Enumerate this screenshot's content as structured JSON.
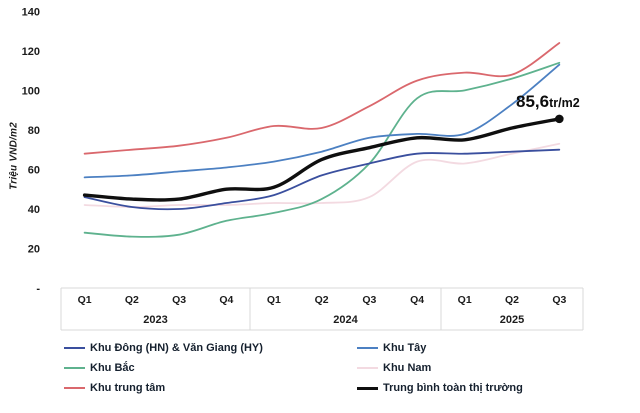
{
  "chart_data": {
    "type": "line",
    "title": "",
    "ylabel": "Triệu VND/m2",
    "ylim": [
      0,
      140
    ],
    "grid": false,
    "y_ticks": [
      {
        "value": 140,
        "label": "140"
      },
      {
        "value": 120,
        "label": "120"
      },
      {
        "value": 100,
        "label": "100"
      },
      {
        "value": 80,
        "label": "80"
      },
      {
        "value": 60,
        "label": "60"
      },
      {
        "value": 40,
        "label": "40"
      },
      {
        "value": 20,
        "label": "20"
      },
      {
        "value": 0,
        "label": "-"
      }
    ],
    "x_axis": {
      "years": [
        {
          "label": "2023",
          "quarters": [
            "Q1",
            "Q2",
            "Q3",
            "Q4"
          ]
        },
        {
          "label": "2024",
          "quarters": [
            "Q1",
            "Q2",
            "Q3",
            "Q4"
          ]
        },
        {
          "label": "2025",
          "quarters": [
            "Q1",
            "Q2",
            "Q3"
          ]
        }
      ]
    },
    "series": [
      {
        "name": "Khu Đông (HN) & Văn Giang (HY)",
        "color": "#3a4f9e",
        "width": 1.8,
        "values": [
          46,
          41,
          40,
          43,
          47,
          57,
          63,
          68,
          68,
          69,
          70
        ]
      },
      {
        "name": "Khu Tây",
        "color": "#4c80c2",
        "width": 1.8,
        "values": [
          56,
          57,
          59,
          61,
          64,
          69,
          76,
          78,
          78,
          93,
          113
        ]
      },
      {
        "name": "Khu Bắc",
        "color": "#5eb28e",
        "width": 1.8,
        "values": [
          28,
          26,
          27,
          34,
          38,
          45,
          63,
          96,
          100,
          106,
          114
        ]
      },
      {
        "name": "Khu Nam",
        "color": "#f3dae1",
        "width": 1.8,
        "values": [
          42,
          41,
          42,
          42,
          43,
          43,
          46,
          64,
          63,
          68,
          73
        ]
      },
      {
        "name": "Khu trung tâm",
        "color": "#da686d",
        "width": 1.8,
        "values": [
          68,
          70,
          72,
          76,
          82,
          81,
          92,
          105,
          109,
          108,
          124
        ]
      },
      {
        "name": "Trung bình toàn thị trường",
        "color": "#0f0f0f",
        "width": 3.4,
        "end_dot": true,
        "values": [
          47,
          45,
          45,
          50,
          51,
          65,
          71,
          76,
          75,
          81,
          85.6
        ]
      }
    ],
    "legend_columns": [
      [
        0,
        2,
        4
      ],
      [
        1,
        3,
        5
      ]
    ],
    "annotation": {
      "value": "85,6",
      "unit": "tr/m2",
      "series": "Trung bình toàn thị trường"
    },
    "legend_position": "bottom"
  }
}
